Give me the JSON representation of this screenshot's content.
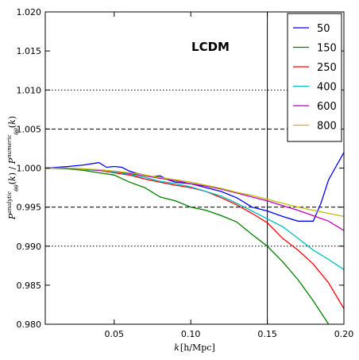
{
  "chart_data": {
    "type": "line",
    "title": "",
    "annotation": "LCDM",
    "xlabel": "k [h/Mpc]",
    "ylabel": "P_θθ^analytic(k) / P_θθ^numeric(k)",
    "xlim": [
      0.005,
      0.2
    ],
    "ylim": [
      0.98,
      1.02
    ],
    "xticks": [
      0.05,
      0.1,
      0.15,
      0.2
    ],
    "xtick_labels": [
      "0.05",
      "0.10",
      "0.15",
      "0.20"
    ],
    "yticks": [
      0.98,
      0.985,
      0.99,
      0.995,
      1.0,
      1.005,
      1.01,
      1.015,
      1.02
    ],
    "ytick_labels": [
      "0.980",
      "0.985",
      "0.990",
      "0.995",
      "1.000",
      "1.005",
      "1.010",
      "1.015",
      "1.020"
    ],
    "legend_position": "top-right",
    "grid": false,
    "hlines": [
      {
        "y": 1.01,
        "style": "dotted"
      },
      {
        "y": 1.005,
        "style": "dashed"
      },
      {
        "y": 0.995,
        "style": "dashed"
      },
      {
        "y": 0.99,
        "style": "dotted"
      }
    ],
    "vlines": [
      {
        "x": 0.15,
        "style": "solid"
      }
    ],
    "series": [
      {
        "name": "50",
        "color": "#0000ff",
        "x": [
          0.005,
          0.02,
          0.03,
          0.04,
          0.045,
          0.05,
          0.055,
          0.06,
          0.065,
          0.07,
          0.075,
          0.08,
          0.085,
          0.09,
          0.1,
          0.11,
          0.12,
          0.13,
          0.14,
          0.15,
          0.16,
          0.17,
          0.175,
          0.18,
          0.185,
          0.19,
          0.2
        ],
        "y": [
          1.0,
          1.0002,
          1.0004,
          1.0007,
          1.0001,
          1.0002,
          1.0001,
          0.9996,
          0.9993,
          0.9991,
          0.9989,
          0.999,
          0.9985,
          0.9982,
          0.998,
          0.9975,
          0.997,
          0.9962,
          0.995,
          0.9945,
          0.9938,
          0.9932,
          0.9932,
          0.9932,
          0.9955,
          0.9985,
          1.002
        ]
      },
      {
        "name": "150",
        "color": "#008000",
        "x": [
          0.005,
          0.02,
          0.03,
          0.04,
          0.05,
          0.06,
          0.07,
          0.08,
          0.09,
          0.1,
          0.11,
          0.12,
          0.13,
          0.14,
          0.15,
          0.16,
          0.17,
          0.18,
          0.19,
          0.2
        ],
        "y": [
          1.0,
          0.9999,
          0.9997,
          0.9994,
          0.9991,
          0.9982,
          0.9975,
          0.9963,
          0.9958,
          0.995,
          0.9946,
          0.9939,
          0.9931,
          0.9915,
          0.99,
          0.988,
          0.9857,
          0.983,
          0.98,
          0.977
        ]
      },
      {
        "name": "250",
        "color": "#ff0000",
        "x": [
          0.005,
          0.02,
          0.03,
          0.04,
          0.05,
          0.06,
          0.07,
          0.08,
          0.09,
          0.1,
          0.11,
          0.12,
          0.13,
          0.14,
          0.15,
          0.16,
          0.17,
          0.18,
          0.19,
          0.2
        ],
        "y": [
          1.0,
          1.0,
          0.9998,
          0.9997,
          0.9994,
          0.9991,
          0.9986,
          0.9982,
          0.9978,
          0.9975,
          0.997,
          0.9962,
          0.9953,
          0.9942,
          0.993,
          0.991,
          0.9895,
          0.9877,
          0.9853,
          0.982
        ]
      },
      {
        "name": "400",
        "color": "#00bfbf",
        "x": [
          0.005,
          0.02,
          0.03,
          0.04,
          0.05,
          0.06,
          0.07,
          0.08,
          0.09,
          0.1,
          0.11,
          0.12,
          0.13,
          0.14,
          0.15,
          0.16,
          0.17,
          0.18,
          0.19,
          0.2
        ],
        "y": [
          1.0,
          1.0,
          0.9998,
          0.9997,
          0.9995,
          0.9992,
          0.9988,
          0.9983,
          0.998,
          0.9976,
          0.997,
          0.9964,
          0.9955,
          0.9945,
          0.9935,
          0.9925,
          0.991,
          0.9895,
          0.9883,
          0.987
        ]
      },
      {
        "name": "600",
        "color": "#bf00bf",
        "x": [
          0.005,
          0.02,
          0.03,
          0.04,
          0.05,
          0.06,
          0.07,
          0.08,
          0.09,
          0.1,
          0.11,
          0.12,
          0.13,
          0.14,
          0.15,
          0.16,
          0.17,
          0.18,
          0.19,
          0.2
        ],
        "y": [
          1.0,
          1.0,
          0.9999,
          0.9997,
          0.9996,
          0.9993,
          0.999,
          0.9987,
          0.9984,
          0.998,
          0.9977,
          0.9973,
          0.9968,
          0.9963,
          0.9958,
          0.9952,
          0.9946,
          0.9939,
          0.9932,
          0.992
        ]
      },
      {
        "name": "800",
        "color": "#bfbf00",
        "x": [
          0.005,
          0.02,
          0.03,
          0.04,
          0.05,
          0.06,
          0.07,
          0.08,
          0.09,
          0.1,
          0.11,
          0.12,
          0.13,
          0.14,
          0.15,
          0.16,
          0.17,
          0.18,
          0.19,
          0.2
        ],
        "y": [
          1.0,
          1.0,
          0.9999,
          0.9998,
          0.9996,
          0.9994,
          0.9991,
          0.9988,
          0.9985,
          0.9982,
          0.9978,
          0.9974,
          0.9969,
          0.9965,
          0.996,
          0.9955,
          0.995,
          0.9946,
          0.9942,
          0.9938
        ]
      }
    ]
  }
}
